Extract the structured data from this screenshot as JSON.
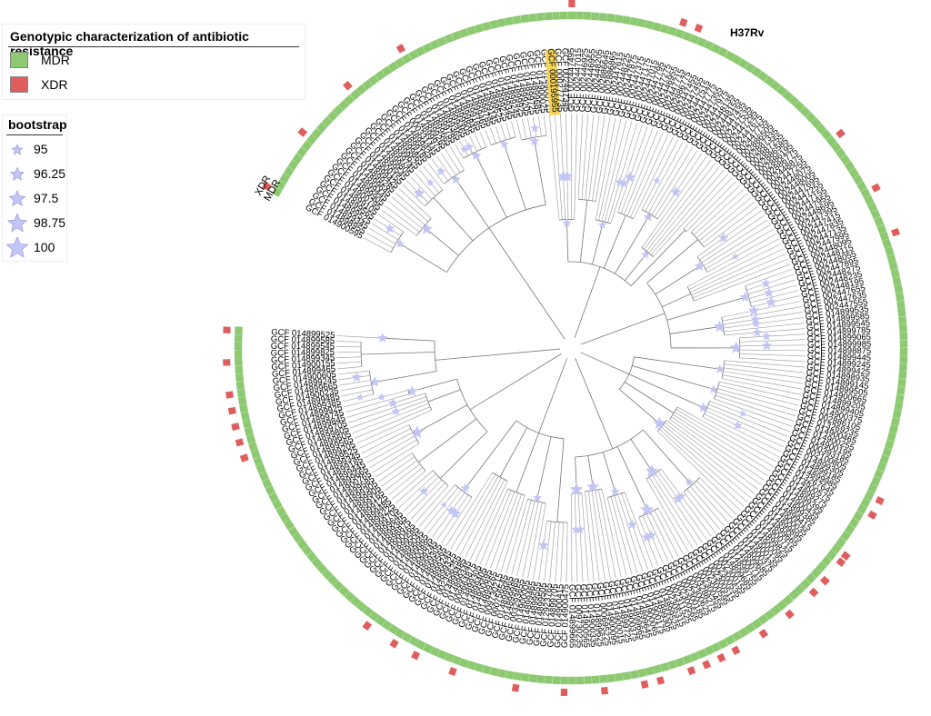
{
  "legend_resistance": {
    "title": "Genotypic characterization of antibiotic resistance",
    "items": [
      {
        "label": "MDR",
        "color": "#8cc971"
      },
      {
        "label": "XDR",
        "color": "#e05d5d"
      }
    ]
  },
  "legend_bootstrap": {
    "title": "bootstrap",
    "items": [
      {
        "label": "95",
        "value": 95
      },
      {
        "label": "96.25",
        "value": 96.25
      },
      {
        "label": "97.5",
        "value": 97.5
      },
      {
        "label": "98.75",
        "value": 98.75
      },
      {
        "label": "100",
        "value": 100
      }
    ],
    "star_color": "#c3c6f5"
  },
  "ring_labels": {
    "inner": "MDR",
    "outer": "XDR"
  },
  "reference": {
    "label": "H37Rv",
    "highlighted_tip": "GCF 000195955",
    "highlight_color": "#f5d35a"
  },
  "tips": [
    "GCF 014900595",
    "GCF 014898955",
    "GCF 014899345",
    "GCF 014899525",
    "GCF 014899565",
    "GCF 014899105",
    "GCF 014900795",
    "GCF 014899905",
    "GCF 014899445",
    "GCF 014899645",
    "GCF 014899285",
    "GCF 014899425",
    "GCF 014900155",
    "GCF 014899545",
    "GCF 014899805",
    "GCF 014899745",
    "GCF 014899625",
    "GCF 014899865",
    "GCF 014899185",
    "GCF 014899825",
    "GCF 000331445",
    "GCF 014899975",
    "GCF 014899265",
    "GCF 014899665",
    "GCF 014899785",
    "GCF 014899365",
    "GCF 014899465",
    "GCF 014899905",
    "GCF 014899845",
    "GCF 014899185",
    "GCF 014899465",
    "GCF 014899785",
    "GCF 014899145",
    "GCF 014899525",
    "GCF 014899225",
    "GCF 014899345",
    "GCF 014899245",
    "GCF 014899925",
    "GCF 014899205",
    "GCF 014899725",
    "GCF 014899685",
    "GCF 014900025",
    "GCF 014900715",
    "GCF 000195955",
    "GCF 000277735",
    "GCF 002447345",
    "GCF 002447495",
    "GCF 002447015",
    "GCF 002446925",
    "GCF 002446955",
    "GCF 002448205",
    "GCF 002886645",
    "GCF 002886865",
    "GCF 002447615",
    "GCF 002448225",
    "GCF 002447875",
    "GCF 002447375",
    "GCF 002447175",
    "GCF 002447015",
    "GCF 002447795",
    "GCF 002447275",
    "GCF 002446955",
    "GCF 002447715",
    "GCF 002886775",
    "GCF 002447455",
    "GCF 002447455",
    "GCF 002447515",
    "GCF 002447775",
    "GCF 002447355",
    "GCF 002447975",
    "GCF 002448135",
    "GCF 002448155",
    "GCF 002447435",
    "GCF 002447535",
    "GCF 002447295",
    "GCF 002447675",
    "GCF 002447755",
    "GCF 002886505",
    "GCF 002887335",
    "GCF 002887255",
    "GCF 002886585",
    "GCF 002886195",
    "GCF 002886775",
    "GCF 002448875",
    "GCF 002447255",
    "GCF 002448075",
    "GCF 002448005",
    "GCF 002447695",
    "GCF 002447255",
    "GCF 002447155",
    "GCF 002447955",
    "GCF 002448695",
    "GCF 002447395",
    "GCF 002447415",
    "GCF 002447835",
    "GCF 002447135",
    "GCF 002447995",
    "GCF 002448095",
    "GCF 002448115",
    "GCF 002448055",
    "GCF 002447895",
    "GCF 002448275",
    "GCF 002448235",
    "GCF 002448195",
    "GCF 002447655",
    "GCF 002447635",
    "GCF 002447555",
    "GCF 014899535",
    "GCF 014899585",
    "GCF 014899545",
    "GCF 014899785",
    "GCF 014899065",
    "GCF 014899985",
    "GCF 014898875",
    "GCF 014899445",
    "GCF 014899245",
    "GCF 014899425",
    "GCF 014898935",
    "GCF 014899145",
    "GCF 014899505",
    "GCF 014900665",
    "GCF 014899205",
    "GCF 014899405",
    "GCF 014900375",
    "GCF 002886105",
    "GCF 013269235",
    "GCF 014900465",
    "GCF 014900255",
    "GCF 014900195",
    "GCF 000393185",
    "GCF 002100805",
    "GCF 014899305",
    "GCF 014899185",
    "GCF 014899985",
    "GCF 013267645",
    "GCF 014900575",
    "GCF 014899275",
    "GCF 014899395",
    "GCF 014900435",
    "GCF 014899385",
    "GCF 014899415",
    "GCF 014900035",
    "GCF 014899895",
    "GCF 014899665",
    "GCF 014900715",
    "GCF 014899825",
    "GCF 014900095",
    "GCF 014900135",
    "GCF 014900375",
    "GCF 014899685",
    "GCF 014900715",
    "GCF 014899755",
    "GCF 014899685",
    "GCF 002300155",
    "GCF 002300535",
    "GCF 002300515",
    "GCF 002300595",
    "GCF 002300455",
    "GCF 003288275",
    "GCF 002300625",
    "GCF 002300185",
    "GCF 002300565",
    "GCF 002311525",
    "GCF 002305315",
    "GCF 014899525",
    "GCF 014899305",
    "GCF 014900175",
    "GCF 014900065",
    "GCF 014899645",
    "GCF 014899665",
    "GCF 014900375",
    "GCF 014899725",
    "GCF 014900015",
    "GCF 014900095",
    "GCF 000695225",
    "GCF 014899625",
    "GCF 014900335",
    "GCF 014900565",
    "GCF 009730235",
    "GCF 014899665",
    "GCF 014900475",
    "GCF 014900415",
    "GCF 014899705",
    "GCF 012923765",
    "GCF 014899505",
    "GCF 014899555",
    "GCF 014899465",
    "GCF 014900005",
    "GCF 003293655",
    "GCF 014899985",
    "GCF 014899965",
    "GCF 000756545",
    "GCF 009730215",
    "GCF 014899265",
    "GCF 014900695",
    "GCF 014899405",
    "GCF 014899305",
    "GCF 009664875",
    "GCF 014899345",
    "GCF 014899485",
    "GCF 002356255",
    "GCF 014899325",
    "GCF 014899245",
    "GCF 014899565",
    "GCF 014899305",
    "GCF 014899245",
    "GCF 014900895",
    "GCF 014899965",
    "GCF 014899045",
    "GCF 014899585",
    "GCF 014900465",
    "GCF 014898875",
    "GCF 014899365",
    "GCF 014899645",
    "GCF 014899705",
    "GCF 014899225",
    "GCF 014899485",
    "GCF 014899125",
    "GCF 014899165",
    "GCF 014899905",
    "GCF 014899305",
    "GCF 014899585",
    "GCF 014900765",
    "GCF 014899665",
    "GCF 014899445",
    "GCF 014899185",
    "GCF 014899345",
    "GCF 014899525",
    "GCF 014899205",
    "GCF 014899565",
    "GCF 014899605",
    "GCF 014899805",
    "GCF 014899705",
    "GCF 014899845",
    "GCF 014899745",
    "GCF 014899925",
    "GCF 014899385",
    "GCF 014899485",
    "GCF 014900235",
    "GCF 014899665",
    "GCF 014899245",
    "GCF 014900605",
    "GCF 014899465",
    "GCF 014900155",
    "GCF 014899345",
    "GCF 014899825",
    "GCF 014899545",
    "GCF 014899585",
    "GCF 014899525"
  ]
}
